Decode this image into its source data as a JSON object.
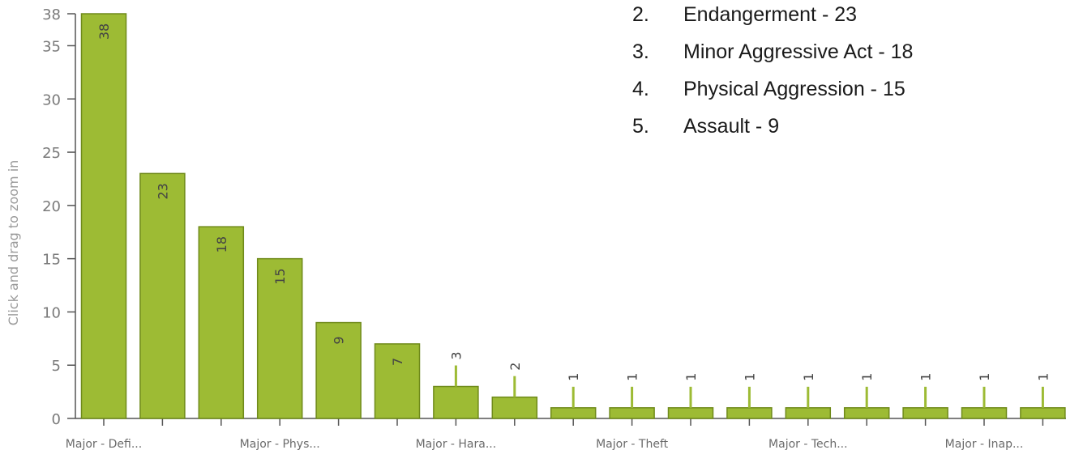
{
  "chart_data": {
    "type": "bar",
    "ylabel": "Click and drag to zoom in",
    "ylim": [
      0,
      38
    ],
    "yticks": [
      0,
      5,
      10,
      15,
      20,
      25,
      30,
      35,
      38
    ],
    "values": [
      38,
      23,
      18,
      15,
      9,
      7,
      3,
      2,
      1,
      1,
      1,
      1,
      1,
      1,
      1,
      1,
      1
    ],
    "x_tick_labels": [
      "Major - Defi...",
      "Major - Phys...",
      "Major - Hara...",
      "Major - Theft",
      "Major - Tech...",
      "Major - Inap..."
    ],
    "colors": {
      "bar": "#9dbb34",
      "bar_edge": "#6f8a1a",
      "axis": "#555555"
    },
    "grid": false,
    "legend": "none"
  },
  "ranking_list": [
    {
      "num": "2.",
      "text": "Endangerment - 23"
    },
    {
      "num": "3.",
      "text": "Minor Aggressive Act - 18"
    },
    {
      "num": "4.",
      "text": "Physical Aggression - 15"
    },
    {
      "num": "5.",
      "text": "Assault - 9"
    }
  ]
}
